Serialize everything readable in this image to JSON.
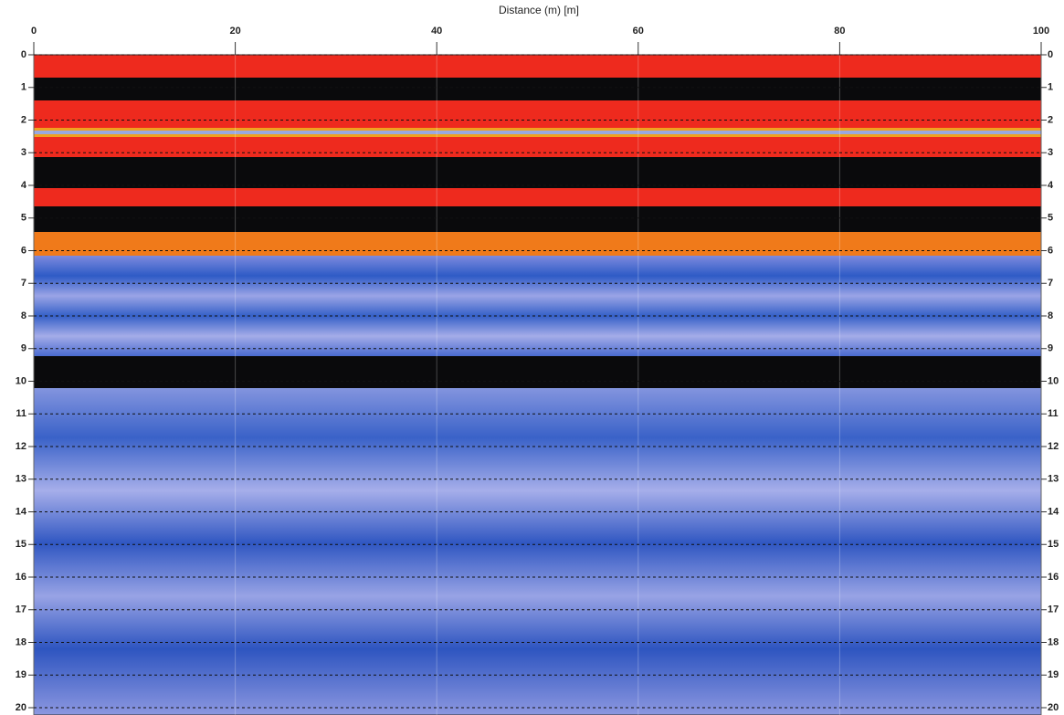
{
  "chart_data": {
    "type": "radargram",
    "title": "Distance (m) [m]",
    "xlim": [
      0,
      100
    ],
    "xticks": [
      0,
      20,
      40,
      60,
      80,
      100
    ],
    "ylim": [
      0,
      20
    ],
    "yticks": [
      0,
      1,
      2,
      3,
      4,
      5,
      6,
      7,
      8,
      9,
      10,
      11,
      12,
      13,
      14,
      15,
      16,
      17,
      18,
      19,
      20
    ],
    "y_inverted": true,
    "grid": true
  }
}
